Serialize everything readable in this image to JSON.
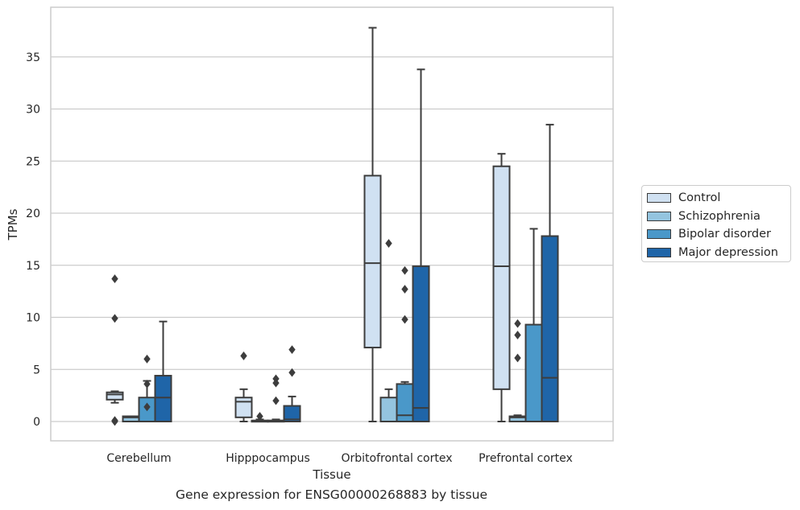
{
  "caption": "Gene expression for ENSG00000268883 by tissue",
  "chart_data": {
    "type": "box",
    "xlabel": "Tissue",
    "ylabel": "TPMs",
    "ylim": [
      -1.8,
      39.5
    ],
    "yticks": [
      0,
      5,
      10,
      15,
      20,
      25,
      30,
      35
    ],
    "grid": "horizontal",
    "legend_position": "right",
    "categories": [
      "Cerebellum",
      "Hipppocampus",
      "Orbitofrontal cortex",
      "Prefrontal cortex"
    ],
    "series": [
      {
        "name": "Control",
        "color": "#d0e1f2",
        "boxes": [
          {
            "min": 1.8,
            "q1": 2.1,
            "median": 2.6,
            "q3": 2.8,
            "max": 2.9,
            "outliers": [
              13.7,
              9.9,
              0.1,
              0.0
            ]
          },
          {
            "min": 0.0,
            "q1": 0.4,
            "median": 1.9,
            "q3": 2.3,
            "max": 3.1,
            "outliers": [
              6.3
            ]
          },
          {
            "min": 0.0,
            "q1": 7.1,
            "median": 15.2,
            "q3": 23.6,
            "max": 37.8,
            "outliers": []
          },
          {
            "min": 0.0,
            "q1": 3.1,
            "median": 14.9,
            "q3": 24.5,
            "max": 25.7,
            "outliers": []
          }
        ]
      },
      {
        "name": "Schizophrenia",
        "color": "#94c4df",
        "boxes": [
          {
            "min": 0.0,
            "q1": 0.0,
            "median": 0.4,
            "q3": 0.5,
            "max": 0.5,
            "outliers": []
          },
          {
            "min": 0.0,
            "q1": 0.0,
            "median": 0.0,
            "q3": 0.1,
            "max": 0.2,
            "outliers": [
              0.5
            ]
          },
          {
            "min": 0.0,
            "q1": 0.0,
            "median": 0.0,
            "q3": 2.3,
            "max": 3.1,
            "outliers": []
          },
          {
            "min": 0.0,
            "q1": 0.0,
            "median": 0.4,
            "q3": 0.5,
            "max": 0.6,
            "outliers": [
              9.4,
              8.3,
              6.1
            ]
          }
        ]
      },
      {
        "name": "Bipolar disorder",
        "color": "#4a98c9",
        "boxes": [
          {
            "min": 0.0,
            "q1": 0.0,
            "median": 0.0,
            "q3": 2.3,
            "max": 3.9,
            "outliers": [
              6.0,
              3.6,
              1.4
            ]
          },
          {
            "min": 0.0,
            "q1": 0.0,
            "median": 0.0,
            "q3": 0.1,
            "max": 0.2,
            "outliers": [
              4.1,
              3.7,
              2.0
            ]
          },
          {
            "min": 0.0,
            "q1": 0.0,
            "median": 0.6,
            "q3": 3.6,
            "max": 3.8,
            "outliers": [
              14.5,
              12.7,
              9.8
            ]
          },
          {
            "min": 0.0,
            "q1": 0.0,
            "median": 0.0,
            "q3": 9.3,
            "max": 18.5,
            "outliers": []
          }
        ]
      },
      {
        "name": "Major depression",
        "color": "#1f65a8",
        "boxes": [
          {
            "min": 0.0,
            "q1": 0.0,
            "median": 2.3,
            "q3": 4.4,
            "max": 9.6,
            "outliers": []
          },
          {
            "min": 0.0,
            "q1": 0.0,
            "median": 0.2,
            "q3": 1.5,
            "max": 2.4,
            "outliers": [
              6.9,
              4.7
            ]
          },
          {
            "min": 0.0,
            "q1": 0.0,
            "median": 1.3,
            "q3": 14.9,
            "max": 33.8,
            "outliers": []
          },
          {
            "min": 0.0,
            "q1": 0.0,
            "median": 4.2,
            "q3": 17.8,
            "max": 28.5,
            "outliers": []
          }
        ]
      }
    ],
    "extra_outliers": [
      {
        "category": 2,
        "y": 17.1
      }
    ]
  }
}
